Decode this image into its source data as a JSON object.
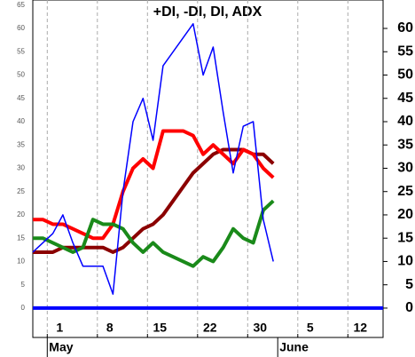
{
  "chart_data": {
    "type": "line",
    "title": "+DI, -DI, DI, ADX",
    "categories": [
      null,
      "1",
      null,
      null,
      null,
      null,
      "8",
      null,
      null,
      null,
      null,
      "15",
      null,
      null,
      null,
      null,
      "22",
      null,
      null,
      null,
      null,
      "30",
      null,
      null,
      null,
      null,
      "5",
      null,
      null,
      null,
      null,
      "12",
      null,
      null,
      null,
      null
    ],
    "months": [
      null,
      "May",
      null,
      null,
      null,
      null,
      null,
      null,
      null,
      null,
      null,
      null,
      null,
      null,
      null,
      null,
      null,
      null,
      null,
      null,
      null,
      null,
      null,
      null,
      "June",
      null,
      null,
      null,
      null,
      null,
      null,
      null,
      null,
      null,
      null,
      null
    ],
    "series": [
      {
        "color": "#8b0000",
        "width": 4,
        "values": [
          12,
          12,
          12,
          13,
          13,
          13,
          13,
          13,
          12,
          13,
          15,
          17,
          18,
          20,
          23,
          26,
          29,
          31,
          33,
          34,
          34,
          34,
          33,
          33,
          31,
          null,
          null,
          null,
          null,
          null,
          null,
          null,
          null,
          null,
          null,
          null
        ]
      },
      {
        "color": "#ff0000",
        "width": 4,
        "values": [
          19,
          19,
          18,
          18,
          17,
          16,
          15,
          15,
          18,
          25,
          30,
          32,
          30,
          38,
          38,
          38,
          37,
          33,
          35,
          33,
          31,
          34,
          33,
          30,
          28,
          null,
          null,
          null,
          null,
          null,
          null,
          null,
          null,
          null,
          null,
          null
        ]
      },
      {
        "color": "#1a8a1a",
        "width": 4,
        "values": [
          15,
          15,
          14,
          13,
          12,
          13,
          19,
          18,
          18,
          17,
          14,
          12,
          14,
          12,
          11,
          10,
          9,
          11,
          10,
          13,
          17,
          15,
          14,
          21,
          23,
          null,
          null,
          null,
          null,
          null,
          null,
          null,
          null,
          null,
          null,
          null
        ]
      },
      {
        "color": "#0000ff",
        "width": 1.5,
        "values": [
          12,
          14,
          16,
          20,
          14,
          9,
          9,
          9,
          3,
          25,
          40,
          45,
          36,
          52,
          55,
          58,
          61,
          50,
          56,
          42,
          29,
          39,
          40,
          19,
          10,
          null,
          null,
          null,
          null,
          null,
          null,
          null,
          null,
          null,
          null,
          null
        ]
      }
    ],
    "hline": 0,
    "hline_color": "#0000ff",
    "ylim": [
      -6.3,
      66.1
    ],
    "yticks": [
      0,
      5,
      10,
      15,
      20,
      25,
      30,
      35,
      40,
      45,
      50,
      55,
      60,
      65
    ],
    "y2lim": [
      -6.3,
      66.1
    ],
    "y2ticks": [
      0,
      5,
      10,
      15,
      20,
      25,
      30,
      35,
      40,
      45,
      50,
      55,
      60
    ],
    "grid": true
  }
}
